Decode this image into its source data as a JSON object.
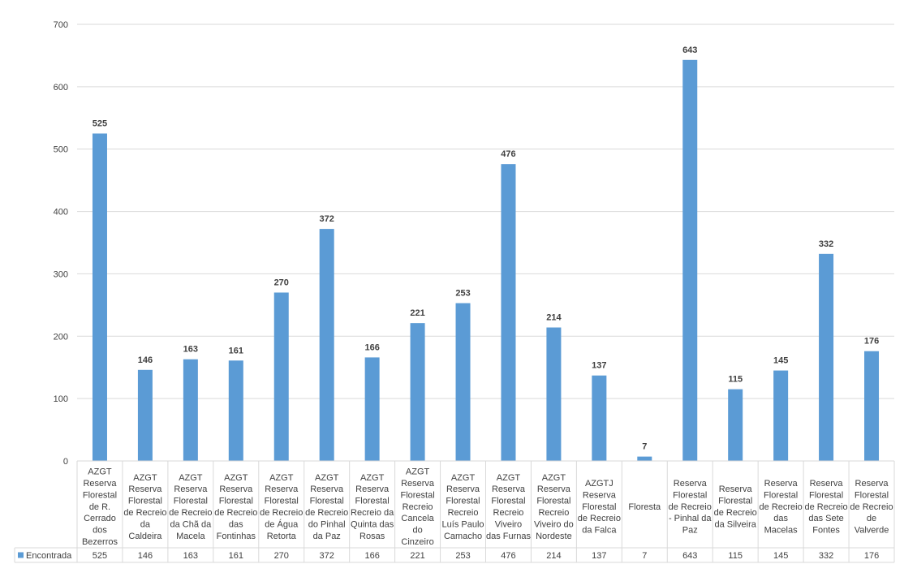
{
  "chart_data": {
    "type": "bar",
    "ylim": [
      0,
      700
    ],
    "yticks": [
      0,
      100,
      200,
      300,
      400,
      500,
      600,
      700
    ],
    "grid": true,
    "legend_placement": "data-table",
    "bar_color": "#5B9BD5",
    "grid_color": "#D9D9D9",
    "categories": [
      [
        "AZGT",
        "Reserva",
        "Florestal",
        "de R.",
        "Cerrado",
        "dos",
        "Bezerros"
      ],
      [
        "AZGT",
        "Reserva",
        "Florestal",
        "de Recreio",
        "da",
        "Caldeira"
      ],
      [
        "AZGT",
        "Reserva",
        "Florestal",
        "de Recreio",
        "da Chã da",
        "Macela"
      ],
      [
        "AZGT",
        "Reserva",
        "Florestal",
        "de Recreio",
        "das",
        "Fontinhas"
      ],
      [
        "AZGT",
        "Reserva",
        "Florestal",
        "de Recreio",
        "de Água",
        "Retorta"
      ],
      [
        "AZGT",
        "Reserva",
        "Florestal",
        "de Recreio",
        "do Pinhal",
        "da Paz"
      ],
      [
        "AZGT",
        "Reserva",
        "Florestal",
        "Recreio da",
        "Quinta das",
        "Rosas"
      ],
      [
        "AZGT",
        "Reserva",
        "Florestal",
        "Recreio",
        "Cancela",
        "do",
        "Cinzeiro"
      ],
      [
        "AZGT",
        "Reserva",
        "Florestal",
        "Recreio",
        "Luís Paulo",
        "Camacho"
      ],
      [
        "AZGT",
        "Reserva",
        "Florestal",
        "Recreio",
        "Viveiro",
        "das Furnas"
      ],
      [
        "AZGT",
        "Reserva",
        "Florestal",
        "Recreio",
        "Viveiro do",
        "Nordeste"
      ],
      [
        "AZGTJ",
        "Reserva",
        "Florestal",
        "de Recreio",
        "da Falca"
      ],
      [
        "Floresta"
      ],
      [
        "Reserva",
        "Florestal",
        "de Recreio",
        "- Pinhal da",
        "Paz"
      ],
      [
        "Reserva",
        "Florestal",
        "de Recreio",
        "da Silveira"
      ],
      [
        "Reserva",
        "Florestal",
        "de Recreio",
        "das",
        "Macelas"
      ],
      [
        "Reserva",
        "Florestal",
        "de Recreio",
        "das Sete",
        "Fontes"
      ],
      [
        "Reserva",
        "Florestal",
        "de Recreio",
        "de",
        "Valverde"
      ]
    ],
    "series": [
      {
        "name": "Encontrada",
        "values": [
          525,
          146,
          163,
          161,
          270,
          372,
          166,
          221,
          253,
          476,
          214,
          137,
          7,
          643,
          115,
          145,
          332,
          176
        ]
      }
    ]
  }
}
